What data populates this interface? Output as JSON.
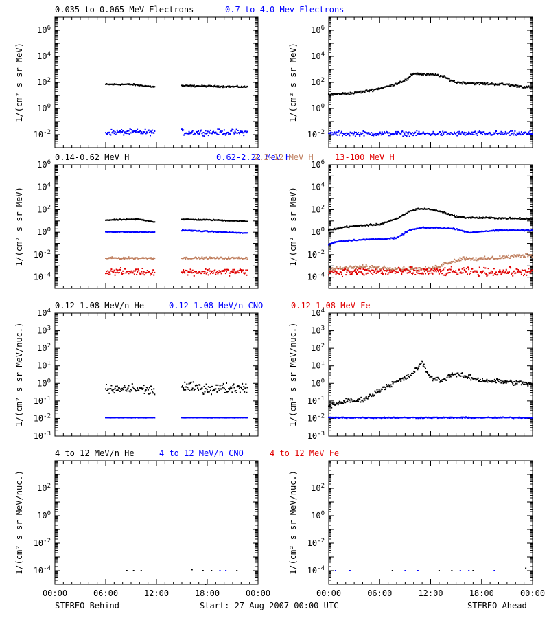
{
  "footer": {
    "left": "STEREO Behind",
    "center": "Start: 27-Aug-2007 00:00 UTC",
    "right": "STEREO Ahead"
  },
  "x_tick_labels": [
    "00:00",
    "06:00",
    "12:00",
    "18:00",
    "00:00"
  ],
  "colors": {
    "black": "#000000",
    "blue": "#0000ff",
    "tan": "#c08060",
    "red": "#e00000"
  },
  "chart_data": [
    {
      "id": "row1",
      "type": "scatter",
      "ylabel": "1/(cm² s sr MeV)",
      "ylog": true,
      "ylim": [
        0.001,
        10000000
      ],
      "yticks": [
        {
          "value": 1000000,
          "base": "10",
          "exp": "6"
        },
        {
          "value": 10000,
          "base": "10",
          "exp": "4"
        },
        {
          "value": 100,
          "base": "10",
          "exp": "2"
        },
        {
          "value": 1,
          "base": "10",
          "exp": "0"
        },
        {
          "value": 0.01,
          "base": "10",
          "exp": "-2"
        }
      ],
      "xlim_hours": [
        0,
        24
      ],
      "legend": [
        {
          "label": "0.035 to 0.065 MeV Electrons",
          "color": "#000000"
        },
        {
          "label": "0.7 to 4.0 Mev Electrons",
          "color": "#0000ff"
        }
      ],
      "panels": [
        {
          "name": "behind",
          "series": [
            {
              "color": "#000000",
              "noise": 0.05,
              "segments": [
                [
                  6.0,
                  11.8
                ],
                [
                  15.0,
                  22.8
                ]
              ],
              "x": [
                6,
                9,
                11.8,
                15,
                19,
                22.8
              ],
              "y": [
                70,
                70,
                45,
                55,
                50,
                45
              ]
            },
            {
              "color": "#0000ff",
              "noise": 0.18,
              "segments": [
                [
                  6.0,
                  11.8
                ],
                [
                  15.0,
                  22.8
                ]
              ],
              "x": [
                6,
                11.8,
                15,
                22.8
              ],
              "y": [
                0.015,
                0.015,
                0.015,
                0.015
              ]
            }
          ]
        },
        {
          "name": "ahead",
          "series": [
            {
              "color": "#000000",
              "noise": 0.08,
              "segments": [
                [
                  0,
                  24
                ]
              ],
              "x": [
                0,
                3,
                5,
                7.5,
                9.3,
                10,
                11.5,
                13,
                14,
                15,
                18,
                21,
                22.5,
                24
              ],
              "y": [
                12,
                15,
                25,
                60,
                180,
                500,
                400,
                350,
                200,
                100,
                80,
                70,
                50,
                40
              ]
            },
            {
              "color": "#0000ff",
              "noise": 0.15,
              "segments": [
                [
                  0,
                  24
                ]
              ],
              "x": [
                0,
                12,
                24
              ],
              "y": [
                0.012,
                0.012,
                0.012
              ]
            }
          ]
        }
      ]
    },
    {
      "id": "row2",
      "type": "scatter",
      "ylabel": "1/(cm² s sr MeV)",
      "ylog": true,
      "ylim": [
        1e-05,
        1000000
      ],
      "yticks": [
        {
          "value": 1000000,
          "base": "10",
          "exp": "6"
        },
        {
          "value": 10000,
          "base": "10",
          "exp": "4"
        },
        {
          "value": 100,
          "base": "10",
          "exp": "2"
        },
        {
          "value": 1,
          "base": "10",
          "exp": "0"
        },
        {
          "value": 0.01,
          "base": "10",
          "exp": "-2"
        },
        {
          "value": 0.0001,
          "base": "10",
          "exp": "-4"
        }
      ],
      "xlim_hours": [
        0,
        24
      ],
      "legend": [
        {
          "label": "0.14-0.62 MeV H",
          "color": "#000000"
        },
        {
          "label": "0.62-2.22 MeV H",
          "color": "#0000ff"
        },
        {
          "label": "2.2-12 MeV H",
          "color": "#c08060"
        },
        {
          "label": "13-100 MeV H",
          "color": "#e00000"
        }
      ],
      "panels": [
        {
          "name": "behind",
          "series": [
            {
              "color": "#000000",
              "noise": 0.04,
              "segments": [
                [
                  6.0,
                  11.8
                ],
                [
                  15.0,
                  22.8
                ]
              ],
              "x": [
                6,
                10,
                11.8,
                15,
                19,
                22.8
              ],
              "y": [
                12,
                14,
                8,
                14,
                12,
                9
              ]
            },
            {
              "color": "#0000ff",
              "noise": 0.04,
              "segments": [
                [
                  6.0,
                  11.8
                ],
                [
                  15.0,
                  22.8
                ]
              ],
              "x": [
                6,
                11.8,
                15,
                22.8
              ],
              "y": [
                1.1,
                1.0,
                1.5,
                0.8
              ]
            },
            {
              "color": "#c08060",
              "noise": 0.07,
              "segments": [
                [
                  6.0,
                  11.8
                ],
                [
                  15.0,
                  22.8
                ]
              ],
              "x": [
                6,
                11.8,
                15,
                22.8
              ],
              "y": [
                0.005,
                0.005,
                0.005,
                0.005
              ]
            },
            {
              "color": "#e00000",
              "noise": 0.25,
              "segments": [
                [
                  6.0,
                  11.8
                ],
                [
                  15.0,
                  22.8
                ]
              ],
              "x": [
                6,
                11.8,
                15,
                22.8
              ],
              "y": [
                0.0003,
                0.0003,
                0.0003,
                0.0003
              ]
            }
          ]
        },
        {
          "name": "ahead",
          "series": [
            {
              "color": "#000000",
              "noise": 0.06,
              "segments": [
                [
                  0,
                  24
                ]
              ],
              "x": [
                0,
                2,
                4,
                6,
                8,
                9.5,
                10.5,
                12,
                13.5,
                15,
                16,
                20,
                24
              ],
              "y": [
                1.5,
                3,
                4,
                5,
                15,
                70,
                120,
                110,
                60,
                25,
                20,
                18,
                15
              ]
            },
            {
              "color": "#0000ff",
              "noise": 0.05,
              "segments": [
                [
                  0,
                  24
                ]
              ],
              "x": [
                0,
                1,
                3,
                6,
                8,
                9.5,
                11,
                13,
                15,
                16.5,
                18,
                21,
                24
              ],
              "y": [
                0.08,
                0.15,
                0.2,
                0.25,
                0.3,
                1.5,
                2.5,
                2.5,
                2.0,
                0.9,
                1.2,
                1.5,
                1.5
              ]
            },
            {
              "color": "#c08060",
              "noise": 0.15,
              "segments": [
                [
                  0,
                  24
                ]
              ],
              "x": [
                0,
                4,
                8,
                12,
                14,
                16,
                18,
                24
              ],
              "y": [
                0.0005,
                0.0008,
                0.0006,
                0.0005,
                0.002,
                0.005,
                0.004,
                0.01
              ]
            },
            {
              "color": "#e00000",
              "noise": 0.3,
              "segments": [
                [
                  0,
                  24
                ]
              ],
              "x": [
                0,
                12,
                24
              ],
              "y": [
                0.0003,
                0.0003,
                0.0003
              ]
            }
          ]
        }
      ]
    },
    {
      "id": "row3",
      "type": "scatter",
      "ylabel": "1/(cm² s sr MeV/nuc.)",
      "ylog": true,
      "ylim": [
        0.001,
        10000
      ],
      "yticks": [
        {
          "value": 10000,
          "base": "10",
          "exp": "4"
        },
        {
          "value": 1000,
          "base": "10",
          "exp": "3"
        },
        {
          "value": 100,
          "base": "10",
          "exp": "2"
        },
        {
          "value": 10,
          "base": "10",
          "exp": "1"
        },
        {
          "value": 1,
          "base": "10",
          "exp": "0"
        },
        {
          "value": 0.1,
          "base": "10",
          "exp": "-1"
        },
        {
          "value": 0.01,
          "base": "10",
          "exp": "-2"
        },
        {
          "value": 0.001,
          "base": "10",
          "exp": "-3"
        }
      ],
      "xlim_hours": [
        0,
        24
      ],
      "legend": [
        {
          "label": "0.12-1.08 MeV/n He",
          "color": "#000000"
        },
        {
          "label": "0.12-1.08 MeV/n CNO",
          "color": "#0000ff"
        },
        {
          "label": "0.12-1.08 MeV Fe",
          "color": "#e00000"
        }
      ],
      "panels": [
        {
          "name": "behind",
          "series": [
            {
              "color": "#000000",
              "noise": 0.25,
              "segments": [
                [
                  6.0,
                  11.8
                ],
                [
                  15.0,
                  22.8
                ]
              ],
              "x": [
                6,
                9,
                11.8,
                15,
                19,
                22.8
              ],
              "y": [
                0.4,
                0.5,
                0.4,
                0.6,
                0.5,
                0.6
              ]
            },
            {
              "color": "#0000ff",
              "noise": 0.01,
              "segments": [
                [
                  6.0,
                  11.8
                ],
                [
                  15.0,
                  22.8
                ]
              ],
              "x": [
                6,
                11.8,
                15,
                22.8
              ],
              "y": [
                0.011,
                0.011,
                0.011,
                0.011
              ]
            }
          ]
        },
        {
          "name": "ahead",
          "series": [
            {
              "color": "#000000",
              "noise": 0.12,
              "segments": [
                [
                  0,
                  24
                ]
              ],
              "x": [
                0,
                2,
                3.5,
                5,
                6.5,
                8,
                9.5,
                10.5,
                11,
                12,
                13.5,
                14.5,
                16,
                18,
                21,
                24
              ],
              "y": [
                0.05,
                0.1,
                0.1,
                0.2,
                0.6,
                1.2,
                2.5,
                8,
                15,
                2.0,
                1.5,
                3.5,
                2.5,
                1.5,
                1.2,
                0.9
              ]
            },
            {
              "color": "#0000ff",
              "noise": 0.03,
              "segments": [
                [
                  0,
                  24
                ]
              ],
              "x": [
                0,
                12,
                24
              ],
              "y": [
                0.011,
                0.011,
                0.011
              ]
            }
          ]
        }
      ]
    },
    {
      "id": "row4",
      "type": "scatter",
      "ylabel": "1/(cm² s sr MeV/nuc.)",
      "ylog": true,
      "ylim": [
        1e-05,
        10000
      ],
      "yticks": [
        {
          "value": 100,
          "base": "10",
          "exp": "2"
        },
        {
          "value": 1,
          "base": "10",
          "exp": "0"
        },
        {
          "value": 0.01,
          "base": "10",
          "exp": "-2"
        },
        {
          "value": 0.0001,
          "base": "10",
          "exp": "-4"
        }
      ],
      "xlim_hours": [
        0,
        24
      ],
      "legend": [
        {
          "label": "4 to 12 MeV/n He",
          "color": "#000000"
        },
        {
          "label": "4 to 12 MeV/n CNO",
          "color": "#0000ff"
        },
        {
          "label": "4 to 12 MeV Fe",
          "color": "#e00000"
        }
      ],
      "panels": [
        {
          "name": "behind",
          "series": [
            {
              "color": "#000000",
              "noise": 0.02,
              "points": [
                [
                  8.5,
                  0.0001
                ],
                [
                  9.3,
                  0.0001
                ],
                [
                  10.2,
                  0.0001
                ],
                [
                  16.2,
                  0.00012
                ],
                [
                  17.5,
                  0.0001
                ],
                [
                  18.5,
                  0.0001
                ],
                [
                  21.5,
                  0.0001
                ],
                [
                  17.8,
                  1e-05
                ]
              ]
            },
            {
              "color": "#0000ff",
              "noise": 0.02,
              "points": [
                [
                  20.2,
                  0.0001
                ],
                [
                  19.5,
                  0.0001
                ]
              ]
            }
          ]
        },
        {
          "name": "ahead",
          "series": [
            {
              "color": "#000000",
              "noise": 0.02,
              "points": [
                [
                  7.5,
                  0.0001
                ],
                [
                  13.0,
                  0.0001
                ],
                [
                  14.5,
                  0.0001
                ],
                [
                  17.0,
                  0.0001
                ],
                [
                  23.2,
                  0.00015
                ]
              ]
            },
            {
              "color": "#0000ff",
              "noise": 0.02,
              "points": [
                [
                  0.8,
                  0.0001
                ],
                [
                  2.5,
                  0.0001
                ],
                [
                  9.0,
                  0.0001
                ],
                [
                  10.5,
                  0.0001
                ],
                [
                  15.5,
                  0.0001
                ],
                [
                  16.5,
                  0.0001
                ],
                [
                  19.5,
                  0.0001
                ]
              ]
            }
          ]
        }
      ]
    }
  ]
}
